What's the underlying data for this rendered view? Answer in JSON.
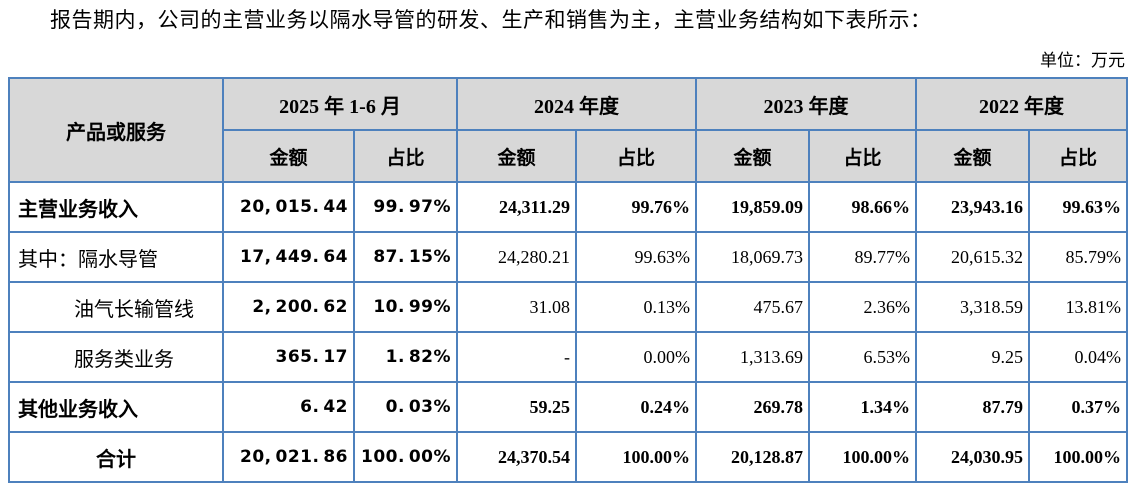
{
  "intro_text": "报告期内，公司的主营业务以隔水导管的研发、生产和销售为主，主营业务结构如下表所示：",
  "unit_label": "单位：万元",
  "colors": {
    "grid_border": "#4E81BD",
    "header_bg": "#D8D8D8",
    "text": "#000000"
  },
  "table": {
    "label_header": "产品或服务",
    "period_headers": [
      "2025 年 1-6 月",
      "2024 年度",
      "2023 年度",
      "2022 年度"
    ],
    "sub_headers": [
      "金额",
      "占比"
    ],
    "rows": [
      {
        "label": "主营业务收入",
        "bold": true,
        "indent": false,
        "center": false,
        "values": [
          "20,015.44",
          "99.97%",
          "24,311.29",
          "99.76%",
          "19,859.09",
          "98.66%",
          "23,943.16",
          "99.63%"
        ]
      },
      {
        "label": "其中：隔水导管",
        "bold": false,
        "indent": false,
        "center": false,
        "values": [
          "17,449.64",
          "87.15%",
          "24,280.21",
          "99.63%",
          "18,069.73",
          "89.77%",
          "20,615.32",
          "85.79%"
        ]
      },
      {
        "label": "油气长输管线",
        "bold": false,
        "indent": true,
        "center": false,
        "values": [
          "2,200.62",
          "10.99%",
          "31.08",
          "0.13%",
          "475.67",
          "2.36%",
          "3,318.59",
          "13.81%"
        ]
      },
      {
        "label": "服务类业务",
        "bold": false,
        "indent": true,
        "center": false,
        "values": [
          "365.17",
          "1.82%",
          "-",
          "0.00%",
          "1,313.69",
          "6.53%",
          "9.25",
          "0.04%"
        ]
      },
      {
        "label": "其他业务收入",
        "bold": true,
        "indent": false,
        "center": false,
        "values": [
          "6.42",
          "0.03%",
          "59.25",
          "0.24%",
          "269.78",
          "1.34%",
          "87.79",
          "0.37%"
        ]
      },
      {
        "label": "合计",
        "bold": true,
        "indent": false,
        "center": true,
        "values": [
          "20,021.86",
          "100.00%",
          "24,370.54",
          "100.00%",
          "20,128.87",
          "100.00%",
          "24,030.95",
          "100.00%"
        ]
      }
    ]
  }
}
